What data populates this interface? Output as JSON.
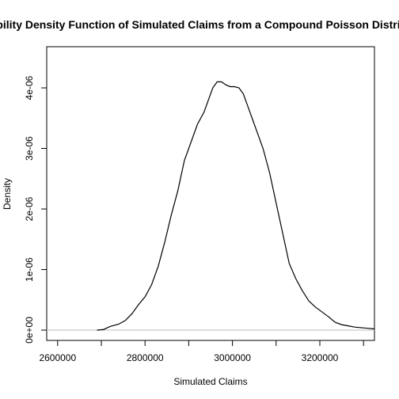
{
  "chart_data": {
    "type": "line",
    "title": "Probability Density Function of Simulated Claims from a Compound Poisson Distribution",
    "xlabel": "Simulated Claims",
    "ylabel": "Density",
    "xlim": [
      2575000,
      3325000
    ],
    "ylim": [
      -1.7e-07,
      4.68e-06
    ],
    "x_ticks": [
      2600000,
      2800000,
      3000000,
      3200000
    ],
    "x_tick_labels": [
      "2600000",
      "2800000",
      "3000000",
      "3200000"
    ],
    "y_ticks": [
      0,
      1e-06,
      2e-06,
      3e-06,
      4e-06
    ],
    "y_tick_labels": [
      "0e+00",
      "1e-06",
      "2e-06",
      "3e-06",
      "4e-06"
    ],
    "baseline": 0,
    "grid": false,
    "series": [
      {
        "line_color": "#000000",
        "x": [
          2690000,
          2705000,
          2720000,
          2740000,
          2755000,
          2770000,
          2785000,
          2800000,
          2815000,
          2830000,
          2845000,
          2860000,
          2875000,
          2890000,
          2905000,
          2920000,
          2935000,
          2945000,
          2955000,
          2965000,
          2975000,
          2985000,
          2995000,
          3005000,
          3015000,
          3025000,
          3035000,
          3045000,
          3055000,
          3070000,
          3085000,
          3100000,
          3115000,
          3130000,
          3145000,
          3160000,
          3175000,
          3190000,
          3205000,
          3220000,
          3235000,
          3250000,
          3265000,
          3280000,
          3295000,
          3310000,
          3325000
        ],
        "y": [
          0.0,
          1e-08,
          6e-08,
          1e-07,
          1.6e-07,
          2.7e-07,
          4.2e-07,
          5.5e-07,
          7.5e-07,
          1.05e-06,
          1.45e-06,
          1.9e-06,
          2.3e-06,
          2.8e-06,
          3.1e-06,
          3.4e-06,
          3.6e-06,
          3.8e-06,
          4e-06,
          4.1e-06,
          4.1e-06,
          4.05e-06,
          4.02e-06,
          4.02e-06,
          4e-06,
          3.9e-06,
          3.7e-06,
          3.5e-06,
          3.3e-06,
          3e-06,
          2.6e-06,
          2.1e-06,
          1.6e-06,
          1.1e-06,
          8.5e-07,
          6.5e-07,
          4.8e-07,
          3.8e-07,
          3e-07,
          2.2e-07,
          1.3e-07,
          9e-08,
          7e-08,
          5e-08,
          4e-08,
          3e-08,
          2e-08
        ]
      }
    ],
    "colors": {
      "curve": "#000000",
      "baseline": "#bebebe",
      "frame": "#000000"
    }
  }
}
